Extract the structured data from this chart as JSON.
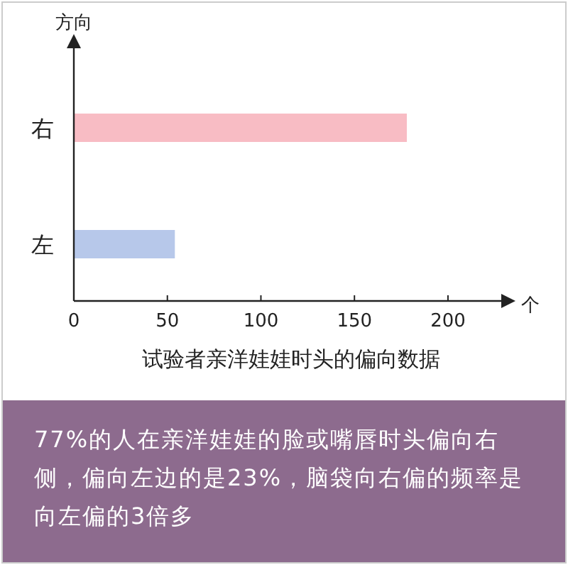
{
  "chart_data": {
    "type": "bar",
    "orientation": "horizontal",
    "categories": [
      "右",
      "左"
    ],
    "values": [
      178,
      54
    ],
    "colors": [
      "#f8bcc4",
      "#b7c8ea"
    ],
    "xlim": [
      0,
      230
    ],
    "xticks": [
      0,
      50,
      100,
      150,
      200
    ],
    "ylabel": "方向",
    "xlabel": "个",
    "title": "试验者亲洋娃娃时头的偏向数据",
    "annotations": [
      "77%的人在亲洋娃娃的脸或嘴唇时头偏向右侧，偏向左边的是23%，脑袋向右偏的频率是向左偏的3倍多"
    ]
  }
}
